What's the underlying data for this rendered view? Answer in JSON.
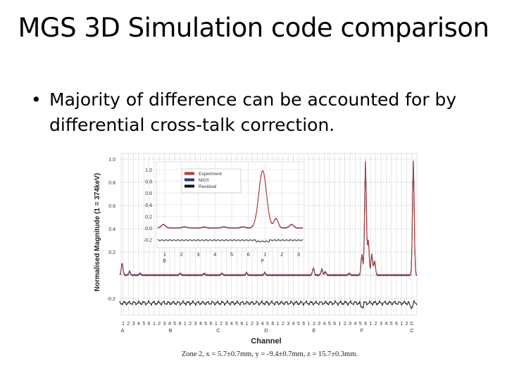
{
  "slide": {
    "title": "MGS 3D Simulation code comparison",
    "bullet": "Majority of difference can be accounted for by differential cross-talk correction.",
    "bullet_symbol": "•"
  },
  "chart_data": [
    {
      "type": "line",
      "title": "",
      "ylabel": "Normalised Magnitude (1 = 374keV)",
      "xlabel": "Channel",
      "ylim": [
        -0.3,
        1.05
      ],
      "yticks": [
        "1.0",
        "0.8",
        "0.6",
        "0.4",
        "0.2",
        "-0.2"
      ],
      "x_tick_labels": [
        "1",
        "2",
        "3",
        "4",
        "5",
        "6",
        "1",
        "2",
        "3",
        "4",
        "5",
        "6",
        "1",
        "2",
        "3",
        "4",
        "5",
        "6",
        "1",
        "2",
        "3",
        "4",
        "5",
        "6",
        "1",
        "2",
        "3",
        "4",
        "5",
        "6",
        "1",
        "2",
        "3",
        "4",
        "5",
        "6",
        "1",
        "2",
        "3",
        "4",
        "5",
        "6",
        "1",
        "2",
        "3",
        "4",
        "5",
        "6",
        "1",
        "2",
        "3",
        "4",
        "5",
        "6",
        "1",
        "2",
        "C"
      ],
      "group_labels": [
        "A",
        "B",
        "C",
        "D",
        "E",
        "F",
        "C"
      ],
      "legend": [
        "Experiment",
        "MGS",
        "Residual"
      ],
      "series_colors": {
        "Experiment": "#c0392b",
        "MGS": "#1f3a8a",
        "Residual": "#111111"
      },
      "caption": "Zone 2, x = 5.7±0.7mm, y = -9.4±0.7mm, z = 15.7±0.3mm."
    },
    {
      "type": "line",
      "title": "inset",
      "yticks": [
        "1.0",
        "0.8",
        "0.6",
        "0.4",
        "0.2",
        "0.0",
        "-0.2"
      ],
      "x_tick_labels": [
        "1",
        "2",
        "3",
        "4",
        "5",
        "6",
        "1",
        "2",
        "3"
      ],
      "group_labels": [
        "E",
        "F"
      ],
      "legend": [
        "Experiment",
        "MGS",
        "Residual"
      ]
    }
  ]
}
